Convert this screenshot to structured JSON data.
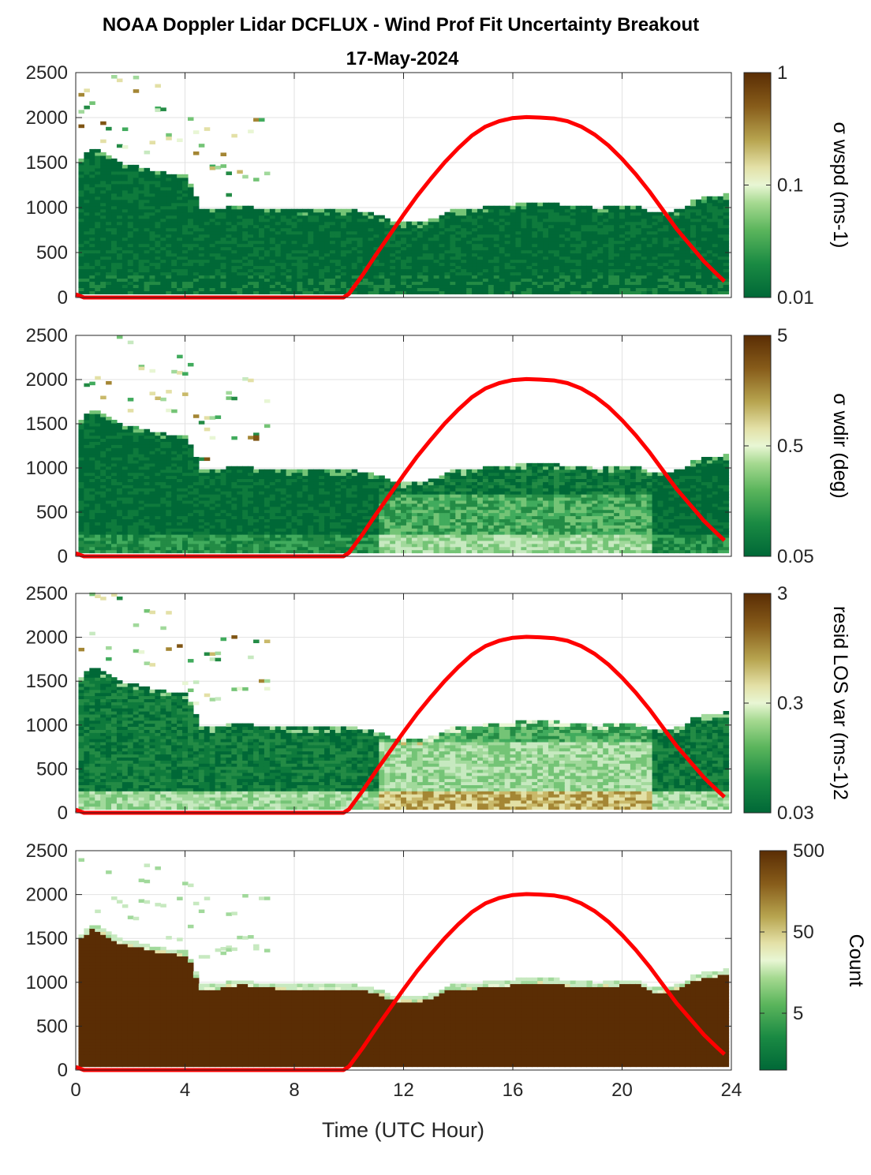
{
  "title_line1": "NOAA Doppler Lidar DCFLUX - Wind Prof Fit Uncertainty Breakout",
  "title_line2": "17-May-2024",
  "colors": {
    "sun_line": "#ff0000",
    "low": "#006837",
    "high": "#5a2d04"
  },
  "chart_data": [
    {
      "type": "heatmap",
      "colorbar_label": "σ wspd (ms-1)",
      "colorbar_scale": "log",
      "colorbar_ticks": [
        "0.01",
        "0.1",
        "1"
      ],
      "clim": [
        0.01,
        1
      ],
      "profile_top": "cloud_top"
    },
    {
      "type": "heatmap",
      "colorbar_label": "σ wdir (deg)",
      "colorbar_scale": "log",
      "colorbar_ticks": [
        "0.05",
        "0.5",
        "5"
      ],
      "clim": [
        0.05,
        5
      ],
      "profile_top": "cloud_top"
    },
    {
      "type": "heatmap",
      "colorbar_label": "resid LOS var (ms-1)2",
      "colorbar_scale": "log",
      "colorbar_ticks": [
        "0.03",
        "0.3",
        "3"
      ],
      "clim": [
        0.03,
        3
      ],
      "profile_top": "cloud_top"
    },
    {
      "type": "heatmap",
      "colorbar_label": "Count",
      "colorbar_scale": "log",
      "colorbar_ticks": [
        "5",
        "50",
        "500"
      ],
      "clim": [
        1,
        500
      ],
      "profile_top": "cloud_top"
    }
  ],
  "shared_axes": {
    "xlabel": "Time (UTC Hour)",
    "xticks": [
      "0",
      "4",
      "8",
      "12",
      "16",
      "20",
      "24"
    ],
    "xlim": [
      0,
      24
    ],
    "ylim": [
      0,
      2500
    ],
    "yticks": [
      "0",
      "500",
      "1000",
      "1500",
      "2000",
      "2500"
    ],
    "grid": true
  },
  "boundary_layer_top": {
    "hours": [
      0,
      0.5,
      1,
      1.5,
      2,
      2.5,
      3,
      3.5,
      4,
      4.5,
      5,
      5.5,
      6,
      6.5,
      7,
      7.5,
      8,
      8.5,
      9,
      9.5,
      10,
      10.5,
      11,
      11.5,
      12,
      12.5,
      13,
      13.5,
      14,
      14.5,
      15,
      15.5,
      16,
      16.5,
      17,
      17.5,
      18,
      18.5,
      19,
      19.5,
      20,
      20.5,
      21,
      21.5,
      22,
      22.5,
      23,
      23.5,
      23.75
    ],
    "height": [
      1520,
      1640,
      1580,
      1480,
      1450,
      1420,
      1380,
      1360,
      1330,
      960,
      960,
      1000,
      1020,
      980,
      980,
      960,
      960,
      960,
      960,
      960,
      960,
      940,
      900,
      840,
      820,
      820,
      860,
      950,
      960,
      970,
      1000,
      1000,
      1020,
      1040,
      1030,
      1020,
      1000,
      1000,
      980,
      1000,
      1020,
      1010,
      930,
      940,
      960,
      1060,
      1100,
      1120,
      1140
    ]
  },
  "sun_elevation_line": {
    "hours": [
      0,
      0.3,
      1,
      2,
      3,
      4,
      5,
      6,
      7,
      8,
      9,
      9.8,
      10,
      10.5,
      11,
      11.5,
      12,
      12.5,
      13,
      13.5,
      14,
      14.5,
      15,
      15.5,
      16,
      16.5,
      17,
      17.5,
      18,
      18.5,
      19,
      19.5,
      20,
      20.5,
      21,
      21.5,
      22,
      22.5,
      23,
      23.5,
      23.75
    ],
    "height": [
      35,
      0,
      0,
      0,
      0,
      0,
      0,
      0,
      0,
      0,
      0,
      0,
      40,
      250,
      480,
      700,
      920,
      1130,
      1320,
      1500,
      1660,
      1800,
      1900,
      1960,
      1995,
      2005,
      2000,
      1990,
      1960,
      1900,
      1810,
      1690,
      1540,
      1370,
      1180,
      970,
      760,
      580,
      400,
      250,
      180
    ]
  }
}
